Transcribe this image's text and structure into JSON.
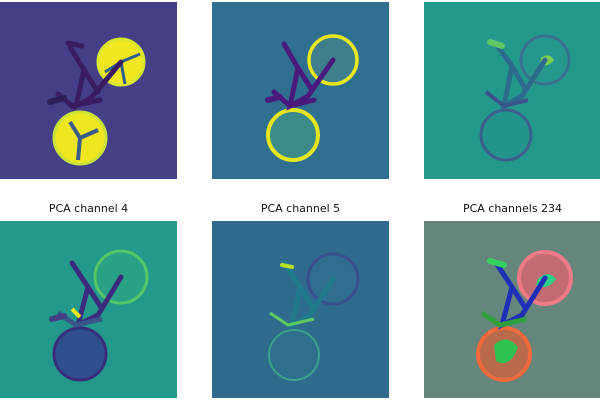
{
  "figure": {
    "titles": {
      "ch4": "PCA channel 4",
      "ch5": "PCA channel 5",
      "rgb234": "PCA channels 234"
    }
  },
  "colors": {
    "panel1_bg": "#443f87",
    "panel2_bg": "#2f6f8f",
    "panel3_bg": "#23998c",
    "panel4_bg": "#23998b",
    "panel5_bg": "#2e6b8d",
    "panel6_bg": "#65867d",
    "viridis_yellow": "#f0e71f",
    "viridis_purple": "#48197c"
  },
  "icons": {
    "subject": "bicycle-icon"
  }
}
